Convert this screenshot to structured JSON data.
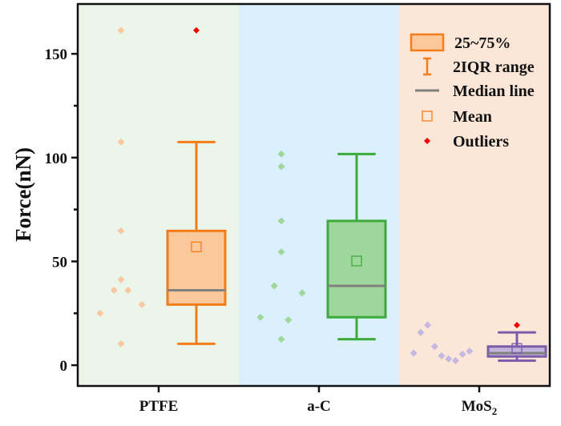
{
  "chart_data": {
    "type": "box",
    "title": "",
    "xlabel": "",
    "ylabel": "Force(nN)",
    "ylim": [
      -10,
      174
    ],
    "yticks": [
      0,
      50,
      100,
      150
    ],
    "grid": false,
    "legend_placement": "top-right",
    "categories": [
      "PTFE",
      "a-C",
      "MoS2"
    ],
    "category_labels": [
      {
        "main": "PTFE",
        "sub": ""
      },
      {
        "main": "a-C",
        "sub": ""
      },
      {
        "main": "MoS",
        "sub": "2"
      }
    ],
    "series": [
      {
        "category": "PTFE",
        "points": [
          161.3,
          107.5,
          64.7,
          41.2,
          36.1,
          36.1,
          29.2,
          25.0,
          10.3
        ],
        "q1": 29.2,
        "median": 36.1,
        "q3": 64.7,
        "mean": 57.0,
        "whisker_low": 10.3,
        "whisker_high": 107.5,
        "outliers": [
          161.3
        ],
        "stroke_color": "#F47D1A",
        "fill_color": "#FBC89B",
        "point_color": "#FAC8A0",
        "background_color": "#EBF5EA"
      },
      {
        "category": "a-C",
        "points": [
          101.7,
          95.7,
          69.5,
          54.6,
          38.2,
          34.8,
          23.1,
          21.8,
          12.5
        ],
        "q1": 23.1,
        "median": 38.2,
        "q3": 69.5,
        "mean": 50.2,
        "whisker_low": 12.5,
        "whisker_high": 101.7,
        "outliers": [],
        "stroke_color": "#3DAA3D",
        "fill_color": "#9FD69C",
        "point_color": "#9ED69B",
        "background_color": "#DAF0FC"
      },
      {
        "category": "MoS2",
        "points": [
          5.8,
          15.8,
          19.3,
          9.0,
          4.5,
          3.0,
          2.2,
          5.3,
          6.8
        ],
        "q1": 4.2,
        "median": 5.8,
        "q3": 9.0,
        "mean": 8.1,
        "whisker_low": 2.2,
        "whisker_high": 15.8,
        "outliers": [
          19.3
        ],
        "stroke_color": "#7B5BAA",
        "fill_color": "#C2B4DC",
        "point_color": "#C5B8E0",
        "background_color": "#FCE6D8"
      }
    ],
    "median_color": "#808080",
    "outlier_color": "#EE0000",
    "legend": [
      {
        "label": "25~75%",
        "symbol": "box"
      },
      {
        "label": "2IQR range",
        "symbol": "whisker"
      },
      {
        "label": "Median line",
        "symbol": "line"
      },
      {
        "label": "Mean",
        "symbol": "square"
      },
      {
        "label": "Outliers",
        "symbol": "diamond"
      }
    ]
  }
}
